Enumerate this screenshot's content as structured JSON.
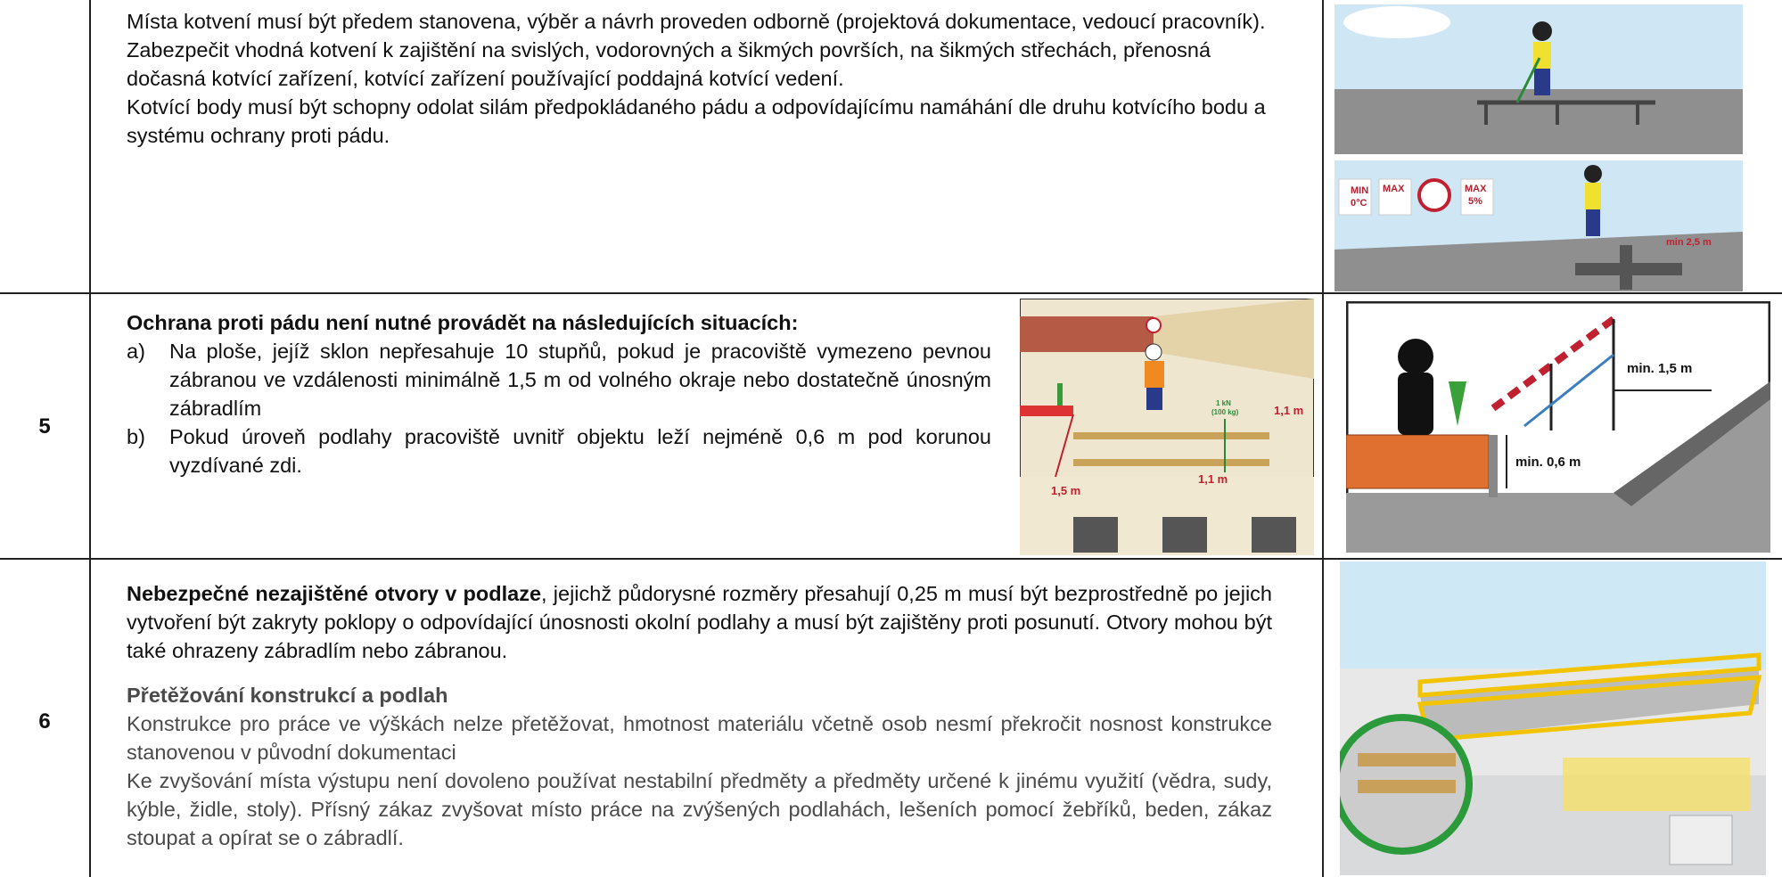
{
  "rows": [
    {
      "paragraphs": [
        "Místa kotvení musí být předem stanovena, výběr a návrh proveden odborně (projektová dokumentace, vedoucí pracovník).",
        "Zabezpečit vhodná kotvení k zajištění na svislých, vodorovných a šikmých površích, na šikmých střechách, přenosná dočasná kotvící zařízení, kotvící zařízení používající poddajná kotvící vedení.",
        "Kotvící body musí být schopny odolat silám předpokládaného pádu a odpovídajícímu namáhání dle druhu kotvícího bodu a systému ochrany proti pádu."
      ],
      "image_labels": [
        "MIN",
        "0°C",
        "MAX",
        "MAX",
        "5%",
        "min 2,5 m"
      ]
    },
    {
      "number": "5",
      "heading": "Ochrana proti pádu není nutné provádět na následujících situacích:",
      "items": [
        {
          "marker": "a)",
          "text": "Na ploše, jejíž sklon nepřesahuje 10 stupňů, pokud je pracoviště vymezeno pevnou zábranou ve vzdálenosti minimálně 1,5 m od volného okraje nebo dostatečně únosným zábradlím"
        },
        {
          "marker": "b)",
          "text": "Pokud úroveň podlahy pracoviště uvnitř objektu leží nejméně 0,6 m pod korunou vyzdívané zdi."
        }
      ],
      "image_labels": [
        "1,5 m",
        "1,1 m",
        "1,1 m",
        "1 kN",
        "(100 kg)",
        "min. 1,5 m",
        "min. 0,6 m"
      ]
    },
    {
      "number": "6",
      "lead_bold": "Nebezpečné nezajištěné otvory v podlaze",
      "lead_text": ", jejichž půdorysné rozměry přesahují 0,25 m musí být bezprostředně po jejich vytvoření být zakryty poklopy o odpovídající únosnosti okolní podlahy a musí být zajištěny proti posunutí. Otvory mohou být také ohrazeny zábradlím nebo zábranou.",
      "subheading": "Přetěžování konstrukcí a podlah",
      "paragraphs": [
        "Konstrukce pro práce ve výškách nelze přetěžovat, hmotnost materiálu včetně osob nesmí překročit nosnost konstrukce stanovenou v původní dokumentaci",
        "Ke zvyšování místa výstupu není dovoleno používat nestabilní předměty a předměty určené k jinému využití (vědra, sudy, kýble, židle, stoly). Přísný zákaz zvyšovat místo práce na zvýšených podlahách, lešeních pomocí žebříků, beden, zákaz stoupat a opírat se o zábradlí."
      ]
    }
  ]
}
